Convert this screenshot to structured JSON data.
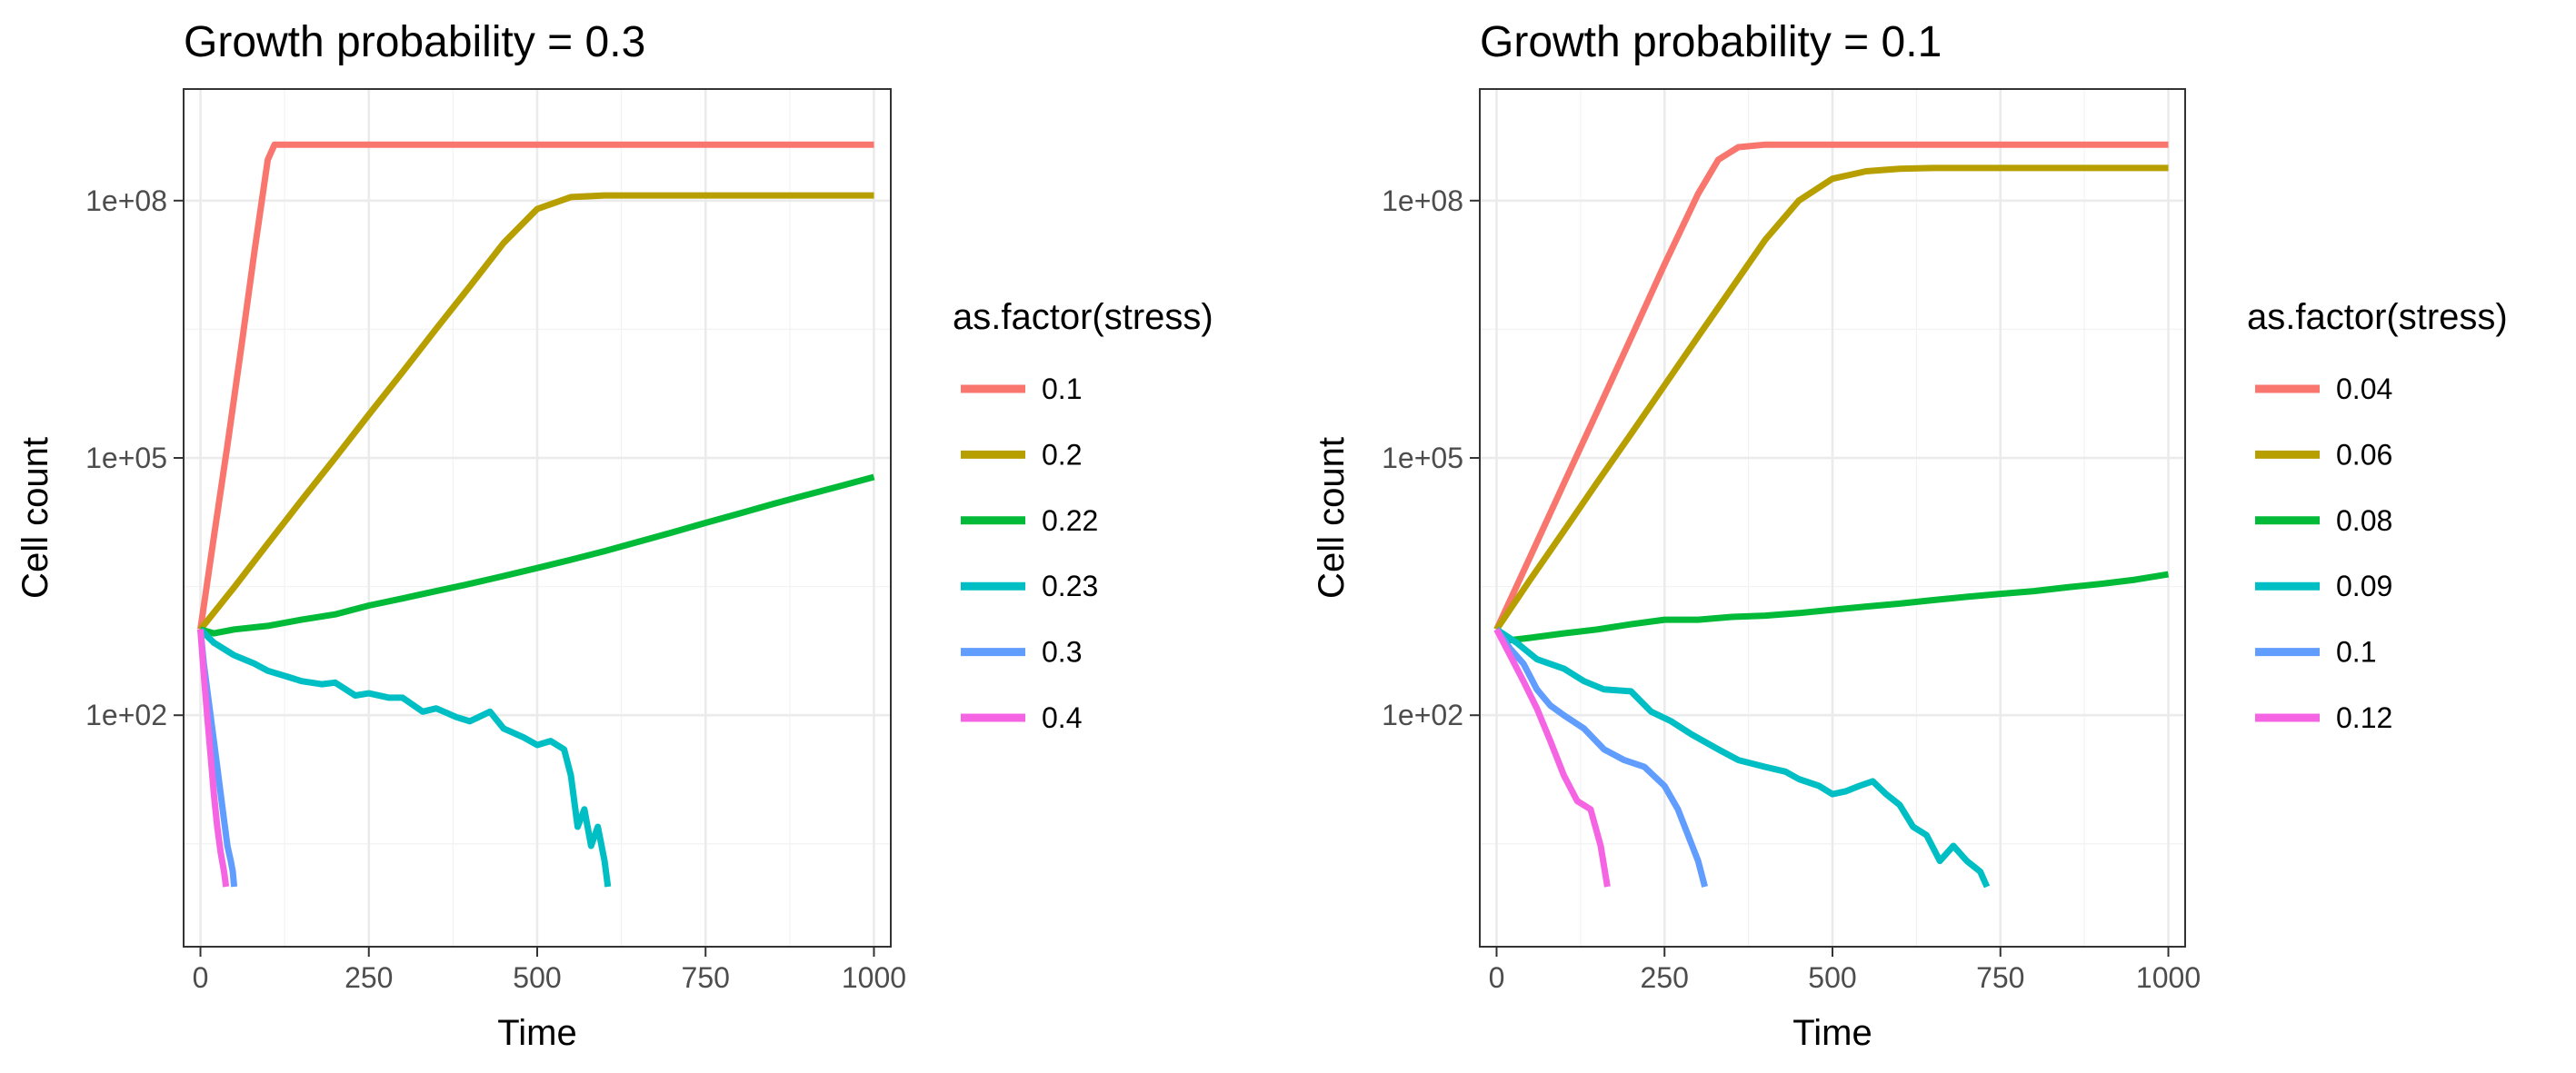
{
  "chart_data": [
    {
      "type": "line",
      "title": "Growth probability = 0.3",
      "xlabel": "Time",
      "ylabel": "Cell count",
      "x_scale": "linear",
      "y_scale": "log10",
      "xlim": [
        -25,
        1025
      ],
      "ylim": [
        0.2,
        2000000000
      ],
      "x_ticks": [
        0,
        250,
        500,
        750,
        1000
      ],
      "x_tick_labels": [
        "0",
        "250",
        "500",
        "750",
        "1000"
      ],
      "y_ticks": [
        100,
        100000,
        100000000
      ],
      "y_tick_labels": [
        "1e+02",
        "1e+05",
        "1e+08"
      ],
      "grid": true,
      "legend_position": "right",
      "legend_title": "as.factor(stress)",
      "series": [
        {
          "name": "0.1",
          "color": "#F8766D",
          "x": [
            0,
            20,
            40,
            60,
            80,
            100,
            110,
            150,
            300,
            500,
            750,
            1000
          ],
          "y": [
            1000,
            12000,
            140000,
            1800000,
            25000000,
            300000000,
            450000000,
            450000000,
            450000000,
            450000000,
            450000000,
            450000000
          ]
        },
        {
          "name": "0.2",
          "color": "#B79F00",
          "x": [
            0,
            50,
            100,
            150,
            200,
            250,
            300,
            350,
            400,
            450,
            500,
            550,
            600,
            800,
            1000
          ],
          "y": [
            1000,
            3100,
            10000,
            32000,
            100000,
            320000,
            1000000,
            3200000,
            10000000,
            32000000,
            80000000,
            110000000,
            115000000,
            115000000,
            115000000
          ]
        },
        {
          "name": "0.22",
          "color": "#00BA38",
          "x": [
            0,
            20,
            50,
            100,
            150,
            200,
            250,
            300,
            350,
            400,
            450,
            500,
            550,
            600,
            650,
            700,
            750,
            800,
            850,
            900,
            950,
            1000
          ],
          "y": [
            1000,
            900,
            1000,
            1100,
            1300,
            1500,
            1900,
            2300,
            2800,
            3400,
            4200,
            5200,
            6500,
            8200,
            10500,
            13500,
            17500,
            22500,
            29000,
            37000,
            47000,
            60000
          ]
        },
        {
          "name": "0.23",
          "color": "#00BFC4",
          "x": [
            0,
            20,
            50,
            80,
            100,
            130,
            150,
            180,
            200,
            230,
            250,
            280,
            300,
            330,
            350,
            380,
            400,
            430,
            450,
            480,
            500,
            520,
            540,
            550,
            560,
            570,
            580,
            590,
            600,
            605
          ],
          "y": [
            1000,
            700,
            500,
            400,
            330,
            280,
            250,
            230,
            240,
            170,
            180,
            160,
            160,
            110,
            120,
            95,
            85,
            110,
            70,
            55,
            45,
            50,
            40,
            20,
            5,
            8,
            3,
            5,
            2,
            1
          ]
        },
        {
          "name": "0.3",
          "color": "#619CFF",
          "x": [
            0,
            5,
            10,
            15,
            20,
            25,
            30,
            35,
            40,
            45,
            48,
            50
          ],
          "y": [
            1000,
            400,
            200,
            100,
            50,
            25,
            12,
            6,
            3,
            2,
            1.5,
            1
          ]
        },
        {
          "name": "0.4",
          "color": "#F564E3",
          "x": [
            0,
            5,
            10,
            15,
            20,
            25,
            30,
            35,
            38
          ],
          "y": [
            1000,
            300,
            100,
            35,
            12,
            5,
            2.5,
            1.5,
            1
          ]
        }
      ]
    },
    {
      "type": "line",
      "title": "Growth probability = 0.1",
      "xlabel": "Time",
      "ylabel": "Cell count",
      "x_scale": "linear",
      "y_scale": "log10",
      "xlim": [
        -25,
        1025
      ],
      "ylim": [
        0.2,
        2000000000
      ],
      "x_ticks": [
        0,
        250,
        500,
        750,
        1000
      ],
      "x_tick_labels": [
        "0",
        "250",
        "500",
        "750",
        "1000"
      ],
      "y_ticks": [
        100,
        100000,
        100000000
      ],
      "y_tick_labels": [
        "1e+02",
        "1e+05",
        "1e+08"
      ],
      "grid": true,
      "legend_position": "right",
      "legend_title": "as.factor(stress)",
      "series": [
        {
          "name": "0.04",
          "color": "#F8766D",
          "x": [
            0,
            50,
            100,
            150,
            200,
            250,
            300,
            330,
            360,
            400,
            500,
            750,
            1000
          ],
          "y": [
            1000,
            7000,
            50000,
            350000,
            2500000,
            18000000,
            120000000,
            300000000,
            420000000,
            450000000,
            450000000,
            450000000,
            450000000
          ]
        },
        {
          "name": "0.06",
          "color": "#B79F00",
          "x": [
            0,
            50,
            100,
            150,
            200,
            250,
            300,
            350,
            400,
            450,
            500,
            550,
            600,
            650,
            700,
            800,
            1000
          ],
          "y": [
            1000,
            3800,
            14000,
            52000,
            190000,
            700000,
            2600000,
            9500000,
            35000000,
            100000000,
            180000000,
            220000000,
            235000000,
            240000000,
            240000000,
            240000000,
            240000000
          ]
        },
        {
          "name": "0.08",
          "color": "#00BA38",
          "x": [
            0,
            20,
            50,
            100,
            150,
            200,
            250,
            300,
            350,
            400,
            450,
            500,
            550,
            600,
            650,
            700,
            750,
            800,
            850,
            900,
            950,
            1000
          ],
          "y": [
            1000,
            750,
            800,
            900,
            1000,
            1150,
            1300,
            1300,
            1400,
            1450,
            1550,
            1700,
            1850,
            2000,
            2200,
            2400,
            2600,
            2800,
            3100,
            3400,
            3800,
            4400
          ]
        },
        {
          "name": "0.09",
          "color": "#00BFC4",
          "x": [
            0,
            30,
            60,
            100,
            130,
            160,
            200,
            230,
            260,
            290,
            330,
            360,
            400,
            430,
            450,
            480,
            500,
            520,
            540,
            560,
            580,
            600,
            620,
            640,
            660,
            680,
            700,
            720,
            730
          ],
          "y": [
            1000,
            700,
            450,
            350,
            250,
            200,
            190,
            110,
            85,
            60,
            40,
            30,
            25,
            22,
            18,
            15,
            12,
            13,
            15,
            17,
            12,
            9,
            5,
            4,
            2,
            3,
            2,
            1.5,
            1
          ]
        },
        {
          "name": "0.1",
          "color": "#619CFF",
          "x": [
            0,
            20,
            40,
            60,
            80,
            100,
            130,
            160,
            190,
            220,
            250,
            270,
            285,
            300,
            310
          ],
          "y": [
            1000,
            600,
            400,
            200,
            130,
            100,
            70,
            40,
            30,
            25,
            15,
            8,
            4,
            2,
            1
          ]
        },
        {
          "name": "0.12",
          "color": "#F564E3",
          "x": [
            0,
            20,
            40,
            60,
            80,
            100,
            120,
            140,
            155,
            165
          ],
          "y": [
            1000,
            500,
            250,
            120,
            50,
            20,
            10,
            8,
            3,
            1
          ]
        }
      ]
    }
  ]
}
